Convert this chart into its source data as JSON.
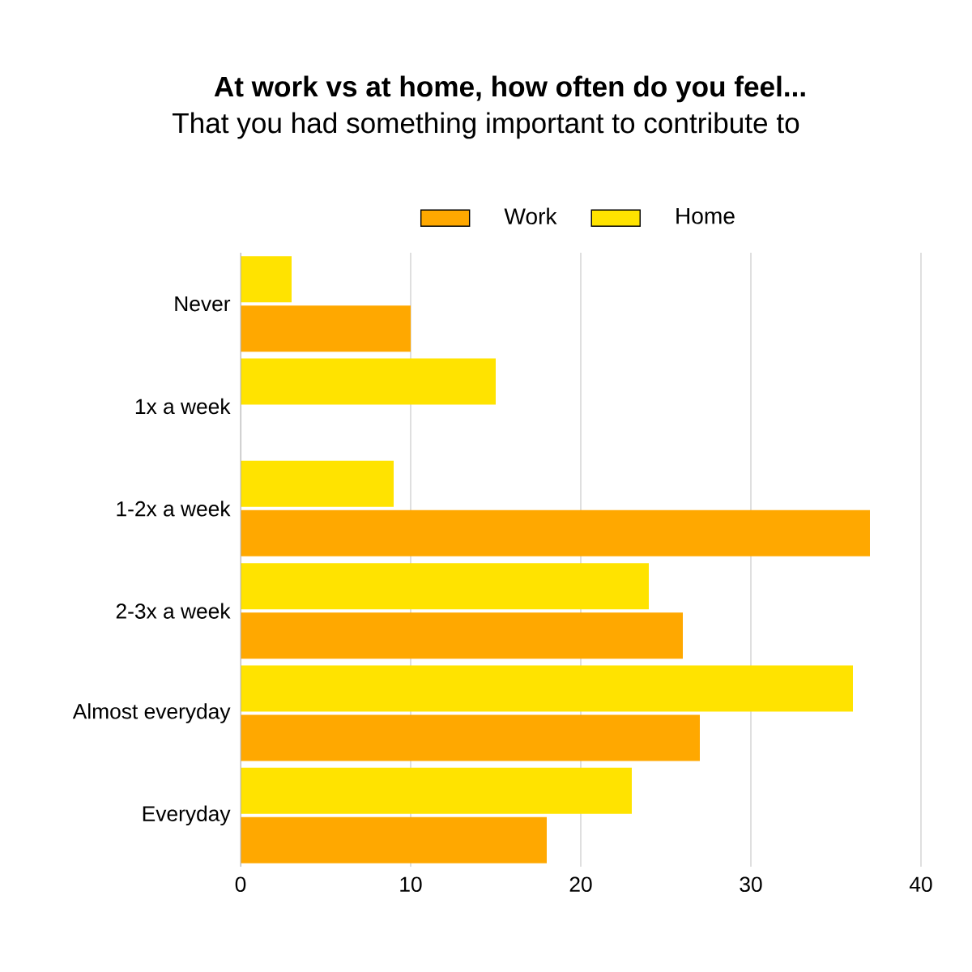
{
  "chart_data": {
    "type": "bar",
    "orientation": "horizontal",
    "title": "At work vs at home, how often do you feel...",
    "subtitle": "That you had something important to contribute to",
    "categories": [
      "Never",
      "1x a week",
      "1-2x a week",
      "2-3x a week",
      "Almost everyday",
      "Everyday"
    ],
    "series": [
      {
        "name": "Work",
        "color": "#ffa800",
        "values": [
          10,
          0,
          37,
          26,
          27,
          18
        ]
      },
      {
        "name": "Home",
        "color": "#ffe300",
        "values": [
          3,
          15,
          9,
          24,
          36,
          23
        ]
      }
    ],
    "xlim": [
      0,
      40
    ],
    "xticks": [
      0,
      10,
      20,
      30,
      40
    ],
    "grid": "x",
    "legend": "top"
  }
}
